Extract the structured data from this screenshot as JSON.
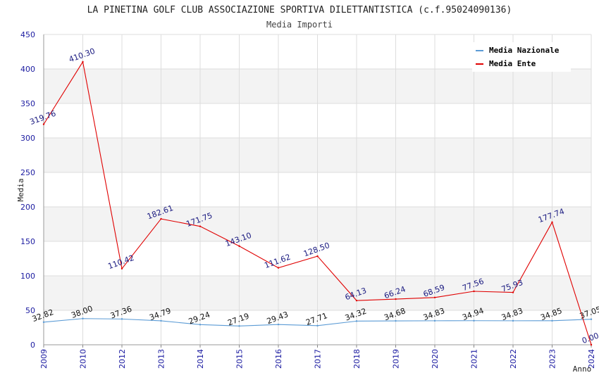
{
  "chart_data": {
    "type": "line",
    "title": "LA PINETINA GOLF CLUB ASSOCIAZIONE SPORTIVA DILETTANTISTICA (c.f.95024090136)",
    "subtitle": "Media Importi",
    "xlabel": "Anno",
    "ylabel": "Media",
    "ylim": [
      0,
      450
    ],
    "yticks": [
      "0",
      "50",
      "100",
      "150",
      "200",
      "250",
      "300",
      "350",
      "400",
      "450"
    ],
    "categories": [
      "2009",
      "2010",
      "2012",
      "2013",
      "2014",
      "2015",
      "2016",
      "2017",
      "2018",
      "2019",
      "2020",
      "2021",
      "2022",
      "2023",
      "2024"
    ],
    "grid": true,
    "legend_position": "top-right",
    "series": [
      {
        "name": "Media Nazionale",
        "color": "#5b9bd5",
        "values": [
          32.82,
          38.0,
          37.36,
          34.79,
          29.24,
          27.19,
          29.43,
          27.71,
          34.32,
          34.68,
          34.83,
          34.94,
          34.83,
          34.85,
          37.05
        ],
        "labels": [
          "32.82",
          "38.00",
          "37.36",
          "34.79",
          "29.24",
          "27.19",
          "29.43",
          "27.71",
          "34.32",
          "34.68",
          "34.83",
          "34.94",
          "34.83",
          "34.85",
          "37.05"
        ]
      },
      {
        "name": "Media Ente",
        "color": "#e00000",
        "values": [
          319.76,
          410.3,
          110.42,
          182.61,
          171.75,
          143.1,
          111.62,
          128.5,
          64.13,
          66.24,
          68.59,
          77.56,
          75.93,
          177.74,
          0.0
        ],
        "labels": [
          "319.76",
          "410.30",
          "110.42",
          "182.61",
          "171.75",
          "143.10",
          "111.62",
          "128.50",
          "64.13",
          "66.24",
          "68.59",
          "77.56",
          "75.93",
          "177.74",
          "0.00"
        ]
      }
    ]
  }
}
